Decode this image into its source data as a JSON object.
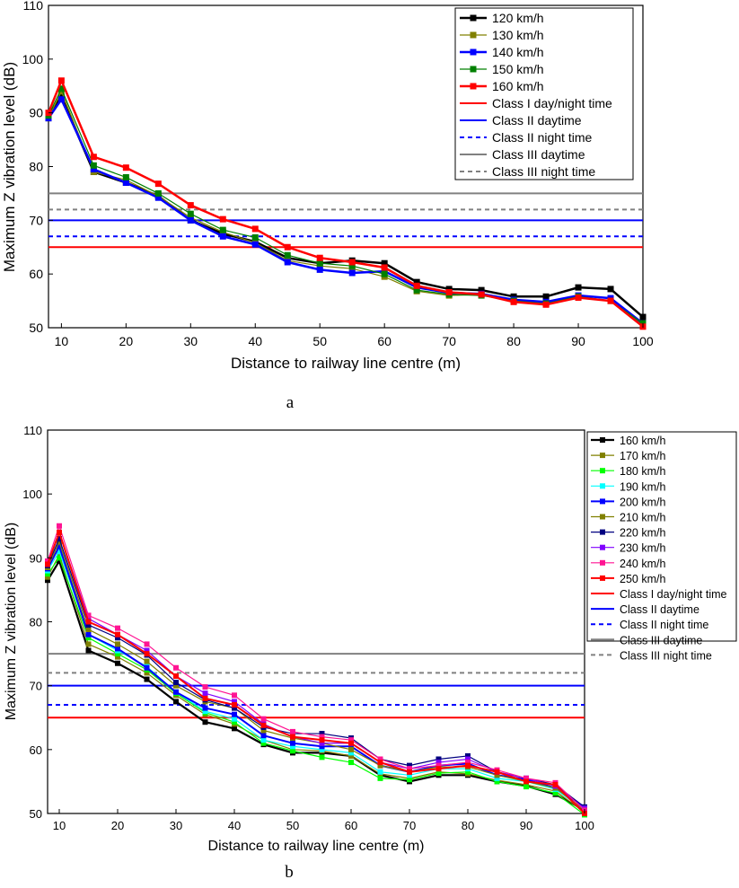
{
  "chart_data": [
    {
      "type": "line",
      "panel_label": "a",
      "xlabel": "Distance to railway line centre (m)",
      "ylabel": "Maximum Z vibration level (dB)",
      "xlim": [
        8,
        100
      ],
      "ylim": [
        50,
        110
      ],
      "x_ticks": [
        "10",
        "20",
        "30",
        "40",
        "50",
        "60",
        "70",
        "80",
        "90",
        "100"
      ],
      "y_ticks": [
        "50",
        "60",
        "70",
        "80",
        "90",
        "100",
        "110"
      ],
      "x": [
        8,
        10,
        15,
        20,
        25,
        30,
        35,
        40,
        45,
        50,
        55,
        60,
        65,
        70,
        75,
        80,
        85,
        90,
        95,
        100
      ],
      "series": [
        {
          "name": "120 km/h",
          "color": "#000000",
          "line_width": 2.5,
          "values": [
            89.5,
            93.0,
            79.0,
            77.0,
            74.5,
            70.0,
            67.5,
            66.0,
            63.0,
            62.0,
            62.5,
            62.0,
            58.5,
            57.2,
            57.0,
            55.8,
            55.8,
            57.5,
            57.2,
            52.0
          ]
        },
        {
          "name": "130 km/h",
          "color": "#808000",
          "line_width": 1.2,
          "values": [
            89.0,
            94.0,
            79.0,
            77.5,
            74.5,
            70.5,
            67.8,
            65.8,
            62.5,
            61.5,
            61.0,
            59.5,
            56.8,
            56.0,
            56.2,
            55.0,
            54.5,
            55.8,
            55.0,
            50.5
          ]
        },
        {
          "name": "140 km/h",
          "color": "#0000ff",
          "line_width": 2.5,
          "values": [
            89.0,
            92.5,
            79.5,
            77.0,
            74.2,
            70.0,
            67.0,
            65.5,
            62.2,
            60.8,
            60.2,
            60.5,
            57.5,
            56.5,
            56.3,
            55.2,
            54.8,
            56.0,
            55.5,
            50.8
          ]
        },
        {
          "name": "150 km/h",
          "color": "#008000",
          "line_width": 1.2,
          "values": [
            89.5,
            94.5,
            80.2,
            78.0,
            75.0,
            71.2,
            68.2,
            66.8,
            63.5,
            62.0,
            61.5,
            60.0,
            57.0,
            56.2,
            56.0,
            55.0,
            54.5,
            55.8,
            55.0,
            50.8
          ]
        },
        {
          "name": "160 km/h",
          "color": "#ff0000",
          "line_width": 2.5,
          "values": [
            90.0,
            96.0,
            81.8,
            79.8,
            76.8,
            72.8,
            70.2,
            68.4,
            65.0,
            63.0,
            62.2,
            61.2,
            57.8,
            56.6,
            56.2,
            54.8,
            54.3,
            55.6,
            55.0,
            50.2
          ]
        }
      ],
      "reference_lines": [
        {
          "name": "Class I day/night time",
          "value": 65,
          "color": "#ff0000",
          "dash": "solid"
        },
        {
          "name": "Class II daytime",
          "value": 70,
          "color": "#0000ff",
          "dash": "solid"
        },
        {
          "name": "Class II night time",
          "value": 67,
          "color": "#0000ff",
          "dash": "dashed"
        },
        {
          "name": "Class III daytime",
          "value": 75,
          "color": "#808080",
          "dash": "solid"
        },
        {
          "name": "Class III night time",
          "value": 72,
          "color": "#808080",
          "dash": "dashed"
        }
      ],
      "legend_position": "inside top-right"
    },
    {
      "type": "line",
      "panel_label": "b",
      "xlabel": "Distance to railway line centre (m)",
      "ylabel": "Maximum Z vibration level (dB)",
      "xlim": [
        8,
        100
      ],
      "ylim": [
        50,
        110
      ],
      "x_ticks": [
        "10",
        "20",
        "30",
        "40",
        "50",
        "60",
        "70",
        "80",
        "90",
        "100"
      ],
      "y_ticks": [
        "50",
        "60",
        "70",
        "80",
        "90",
        "100",
        "110"
      ],
      "x": [
        8,
        10,
        15,
        20,
        25,
        30,
        35,
        40,
        45,
        50,
        55,
        60,
        65,
        70,
        75,
        80,
        85,
        90,
        95,
        100
      ],
      "series": [
        {
          "name": "160 km/h",
          "color": "#000000",
          "line_width": 2.2,
          "values": [
            86.5,
            89.5,
            75.5,
            73.5,
            71.0,
            67.5,
            64.3,
            63.3,
            60.8,
            59.5,
            59.5,
            59.0,
            56.0,
            55.0,
            56.0,
            56.0,
            55.0,
            54.3,
            53.0,
            50.5
          ]
        },
        {
          "name": "170 km/h",
          "color": "#808000",
          "line_width": 1.2,
          "values": [
            87.0,
            90.5,
            76.5,
            74.5,
            72.0,
            68.5,
            65.5,
            64.0,
            61.5,
            60.0,
            59.8,
            59.0,
            56.2,
            55.5,
            56.5,
            56.2,
            55.2,
            54.5,
            53.5,
            50.2
          ]
        },
        {
          "name": "180 km/h",
          "color": "#00ff00",
          "line_width": 1.2,
          "values": [
            87.5,
            90.0,
            77.5,
            75.0,
            72.5,
            68.8,
            65.8,
            64.3,
            61.0,
            59.8,
            58.8,
            58.0,
            55.5,
            55.3,
            56.3,
            56.5,
            55.0,
            54.2,
            53.2,
            49.8
          ]
        },
        {
          "name": "190 km/h",
          "color": "#00ffff",
          "line_width": 1.2,
          "values": [
            88.0,
            91.0,
            78.0,
            75.5,
            73.0,
            69.0,
            66.0,
            64.8,
            61.5,
            60.5,
            60.0,
            59.5,
            56.5,
            56.0,
            57.0,
            57.0,
            55.5,
            55.0,
            53.8,
            50.5
          ]
        },
        {
          "name": "200 km/h",
          "color": "#0000ff",
          "line_width": 2.0,
          "values": [
            88.3,
            91.8,
            78.0,
            75.8,
            72.8,
            69.0,
            66.5,
            65.5,
            62.2,
            61.0,
            60.5,
            60.5,
            57.5,
            56.5,
            57.5,
            57.8,
            56.0,
            55.3,
            54.0,
            51.0
          ]
        },
        {
          "name": "210 km/h",
          "color": "#808000",
          "line_width": 1.2,
          "values": [
            88.5,
            92.5,
            78.8,
            76.5,
            73.8,
            70.0,
            67.5,
            66.5,
            63.0,
            61.8,
            61.0,
            60.0,
            57.5,
            56.5,
            57.3,
            57.3,
            56.0,
            55.0,
            54.0,
            50.5
          ]
        },
        {
          "name": "220 km/h",
          "color": "#000080",
          "line_width": 1.2,
          "values": [
            88.8,
            93.0,
            79.5,
            77.5,
            74.8,
            70.5,
            67.8,
            66.5,
            63.5,
            62.5,
            62.5,
            61.8,
            58.5,
            57.5,
            58.5,
            59.0,
            56.5,
            55.5,
            54.5,
            51.0
          ]
        },
        {
          "name": "230 km/h",
          "color": "#8000ff",
          "line_width": 1.2,
          "values": [
            89.0,
            94.0,
            80.5,
            78.0,
            75.5,
            71.5,
            68.8,
            67.5,
            64.0,
            62.0,
            61.0,
            61.0,
            58.0,
            57.0,
            58.0,
            58.5,
            56.5,
            55.5,
            54.3,
            50.8
          ]
        },
        {
          "name": "240 km/h",
          "color": "#ff1493",
          "line_width": 1.2,
          "values": [
            89.5,
            95.0,
            81.0,
            79.0,
            76.5,
            72.8,
            69.8,
            68.5,
            64.8,
            62.8,
            62.0,
            61.5,
            58.5,
            57.0,
            57.5,
            58.0,
            56.8,
            55.5,
            54.8,
            50.5
          ]
        },
        {
          "name": "250 km/h",
          "color": "#ff0000",
          "line_width": 2.0,
          "values": [
            89.0,
            94.0,
            80.0,
            78.0,
            75.0,
            71.5,
            68.0,
            67.0,
            63.8,
            62.0,
            61.5,
            61.0,
            58.0,
            56.5,
            57.0,
            57.5,
            56.5,
            55.0,
            54.5,
            50.0
          ]
        }
      ],
      "reference_lines": [
        {
          "name": "Class I day/night time",
          "value": 65,
          "color": "#ff0000",
          "dash": "solid"
        },
        {
          "name": "Class II daytime",
          "value": 70,
          "color": "#0000ff",
          "dash": "solid"
        },
        {
          "name": "Class II night time",
          "value": 67,
          "color": "#0000ff",
          "dash": "dashed"
        },
        {
          "name": "Class III daytime",
          "value": 75,
          "color": "#808080",
          "dash": "solid"
        },
        {
          "name": "Class III night time",
          "value": 72,
          "color": "#808080",
          "dash": "dashed"
        }
      ],
      "legend_position": "right outside"
    }
  ]
}
